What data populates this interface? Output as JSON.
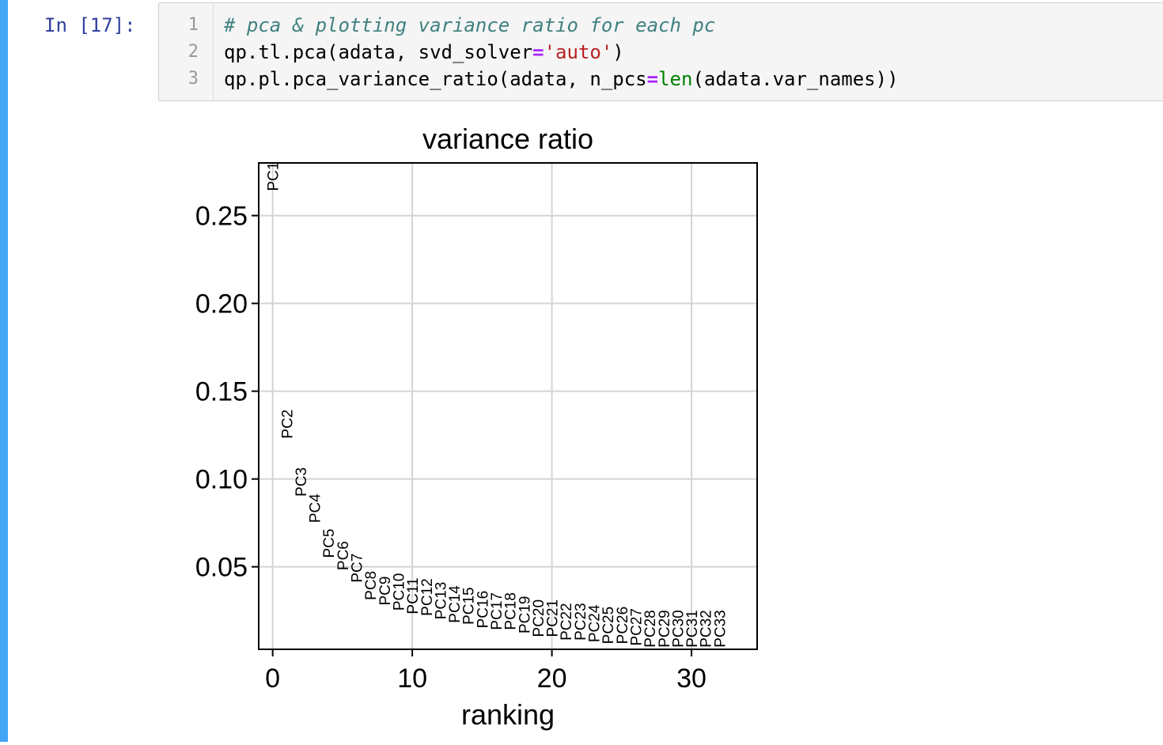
{
  "cell": {
    "prompt": "In [17]:",
    "lines": [
      {
        "n": "1",
        "parts": [
          {
            "cls": "tok-comment",
            "t": "# pca & plotting variance ratio for each pc"
          }
        ]
      },
      {
        "n": "2",
        "parts": [
          {
            "cls": "",
            "t": "qp.tl.pca(adata, svd_solver"
          },
          {
            "cls": "tok-op",
            "t": "="
          },
          {
            "cls": "tok-str",
            "t": "'auto'"
          },
          {
            "cls": "",
            "t": ")"
          }
        ]
      },
      {
        "n": "3",
        "parts": [
          {
            "cls": "",
            "t": "qp.pl.pca_variance_ratio(adata, n_pcs"
          },
          {
            "cls": "tok-op",
            "t": "="
          },
          {
            "cls": "tok-builtin",
            "t": "len"
          },
          {
            "cls": "",
            "t": "(adata.var_names))"
          }
        ]
      }
    ]
  },
  "chart_data": {
    "type": "scatter",
    "title": "variance ratio",
    "xlabel": "ranking",
    "ylabel": "",
    "xlim": [
      -1,
      34.7
    ],
    "ylim": [
      0.003,
      0.28
    ],
    "xticks": [
      0,
      10,
      20,
      30
    ],
    "yticks": [
      0.05,
      0.1,
      0.15,
      0.2,
      0.25
    ],
    "ytick_labels": [
      "0.05",
      "0.10",
      "0.15",
      "0.20",
      "0.25"
    ],
    "grid": true,
    "legend": "none",
    "points": [
      {
        "label": "PC1",
        "x": 0,
        "y": 0.264
      },
      {
        "label": "PC2",
        "x": 1,
        "y": 0.123
      },
      {
        "label": "PC3",
        "x": 2,
        "y": 0.09
      },
      {
        "label": "PC4",
        "x": 3,
        "y": 0.075
      },
      {
        "label": "PC5",
        "x": 4,
        "y": 0.055
      },
      {
        "label": "PC6",
        "x": 5,
        "y": 0.048
      },
      {
        "label": "PC7",
        "x": 6,
        "y": 0.041
      },
      {
        "label": "PC8",
        "x": 7,
        "y": 0.031
      },
      {
        "label": "PC9",
        "x": 8,
        "y": 0.028
      },
      {
        "label": "PC10",
        "x": 9,
        "y": 0.025
      },
      {
        "label": "PC11",
        "x": 10,
        "y": 0.023
      },
      {
        "label": "PC12",
        "x": 11,
        "y": 0.022
      },
      {
        "label": "PC13",
        "x": 12,
        "y": 0.02
      },
      {
        "label": "PC14",
        "x": 13,
        "y": 0.018
      },
      {
        "label": "PC15",
        "x": 14,
        "y": 0.017
      },
      {
        "label": "PC16",
        "x": 15,
        "y": 0.015
      },
      {
        "label": "PC17",
        "x": 16,
        "y": 0.014
      },
      {
        "label": "PC18",
        "x": 17,
        "y": 0.014
      },
      {
        "label": "PC19",
        "x": 18,
        "y": 0.012
      },
      {
        "label": "PC20",
        "x": 19,
        "y": 0.01
      },
      {
        "label": "PC21",
        "x": 20,
        "y": 0.01
      },
      {
        "label": "PC22",
        "x": 21,
        "y": 0.008
      },
      {
        "label": "PC23",
        "x": 22,
        "y": 0.008
      },
      {
        "label": "PC24",
        "x": 23,
        "y": 0.007
      },
      {
        "label": "PC25",
        "x": 24,
        "y": 0.006
      },
      {
        "label": "PC26",
        "x": 25,
        "y": 0.006
      },
      {
        "label": "PC27",
        "x": 26,
        "y": 0.005
      },
      {
        "label": "PC28",
        "x": 27,
        "y": 0.004
      },
      {
        "label": "PC29",
        "x": 28,
        "y": 0.004
      },
      {
        "label": "PC30",
        "x": 29,
        "y": 0.004
      },
      {
        "label": "PC31",
        "x": 30,
        "y": 0.004
      },
      {
        "label": "PC32",
        "x": 31,
        "y": 0.004
      },
      {
        "label": "PC33",
        "x": 32,
        "y": 0.004
      }
    ]
  }
}
